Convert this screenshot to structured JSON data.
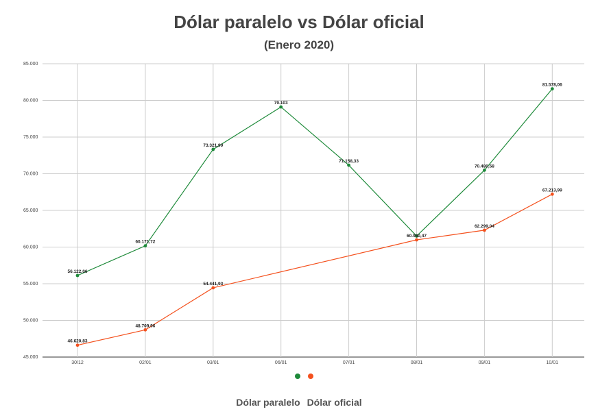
{
  "title": "Dólar paralelo vs Dólar oficial",
  "subtitle": "(Enero 2020)",
  "legend": {
    "names": [
      "Dólar paralelo",
      "Dólar oficial"
    ],
    "colors": [
      "#1e8a3a",
      "#f4511e"
    ]
  },
  "chart_data": {
    "type": "line",
    "categories": [
      "30/12",
      "02/01",
      "03/01",
      "06/01",
      "07/01",
      "08/01",
      "09/01",
      "10/01"
    ],
    "ylim": [
      45000,
      85000
    ],
    "yticks": [
      45000,
      50000,
      55000,
      60000,
      65000,
      70000,
      75000,
      80000,
      85000
    ],
    "ytick_labels": [
      "45.000",
      "50.000",
      "55.000",
      "60.000",
      "65.000",
      "70.000",
      "75.000",
      "80.000",
      "85.000"
    ],
    "grid": true,
    "legend_position": "bottom",
    "series": [
      {
        "name": "Dólar paralelo",
        "color": "#1e8a3a",
        "points": [
          {
            "x": "30/12",
            "y": 56122.06,
            "label": "56.122,06"
          },
          {
            "x": "02/01",
            "y": 60171.72,
            "label": "60.171,72"
          },
          {
            "x": "03/01",
            "y": 73321.9,
            "label": "73.321,90"
          },
          {
            "x": "06/01",
            "y": 79103,
            "label": "79.103"
          },
          {
            "x": "07/01",
            "y": 71158.33,
            "label": "71.158,33"
          },
          {
            "x": "08/01",
            "y": 61500,
            "label": ""
          },
          {
            "x": "09/01",
            "y": 70480.58,
            "label": "70.480,58"
          },
          {
            "x": "10/01",
            "y": 81578.06,
            "label": "81.578,06"
          }
        ]
      },
      {
        "name": "Dólar oficial",
        "color": "#f4511e",
        "points": [
          {
            "x": "30/12",
            "y": 46620.83,
            "label": "46.620,83"
          },
          {
            "x": "02/01",
            "y": 48709.96,
            "label": "48.709,96"
          },
          {
            "x": "03/01",
            "y": 54441.93,
            "label": "54.441,93"
          },
          {
            "x": "08/01",
            "y": 60980.47,
            "label": "60.980,47"
          },
          {
            "x": "09/01",
            "y": 62299.04,
            "label": "62.299,04"
          },
          {
            "x": "10/01",
            "y": 67213.99,
            "label": "67.213,99"
          }
        ]
      }
    ]
  }
}
